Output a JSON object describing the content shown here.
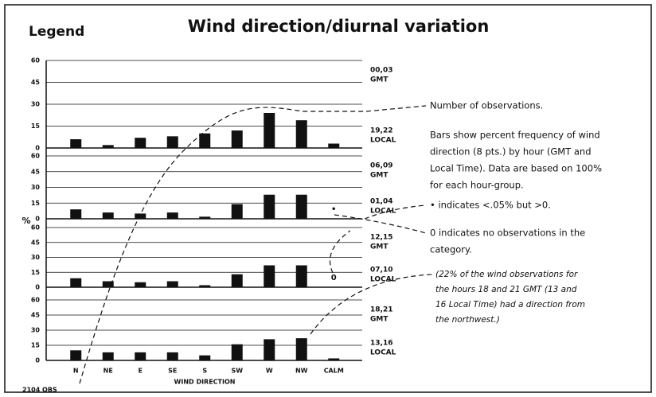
{
  "title": "Wind direction/diurnal variation",
  "legend_heading": "Legend",
  "y_label": "%",
  "x_label": "WIND DIRECTION",
  "obs_label": "2104 OBS",
  "annotations": [
    [
      "Number of observations."
    ],
    [
      "Bars show percent frequency of wind",
      "direction (8 pts.) by hour (GMT and",
      "Local Time). Data are based on 100%",
      "for each hour-group."
    ],
    [
      "• indicates <.05% but >0."
    ],
    [
      "0 indicates no observations in the",
      "category."
    ],
    [
      "(22% of the wind observations for",
      "the hours 18 and 21 GMT (13 and",
      "16 Local Time) had a direction from",
      "the northwest.)"
    ]
  ],
  "chart_data": [
    {
      "type": "bar",
      "color": "#111111",
      "gmt_hours": "00,03",
      "gmt": "GMT",
      "local_hours": "19,22",
      "local": "LOCAL",
      "values": [
        6,
        2,
        7,
        8,
        10,
        12,
        24,
        19,
        3
      ],
      "ylim": [
        0,
        60
      ],
      "yticks": [
        0,
        15,
        30,
        45,
        60
      ],
      "grid": true
    },
    {
      "type": "bar",
      "color": "#111111",
      "gmt_hours": "06,09",
      "gmt": "GMT",
      "local_hours": "01,04",
      "local": "LOCAL",
      "values": [
        9,
        6,
        5,
        6,
        2,
        14,
        23,
        23,
        0
      ],
      "value_labels": [
        null,
        null,
        null,
        null,
        null,
        null,
        null,
        null,
        "•"
      ],
      "ylim": [
        0,
        60
      ],
      "yticks": [
        0,
        15,
        30,
        45,
        60
      ],
      "grid": true
    },
    {
      "type": "bar",
      "color": "#111111",
      "gmt_hours": "12,15",
      "gmt": "GMT",
      "local_hours": "07,10",
      "local": "LOCAL",
      "values": [
        9,
        6,
        5,
        6,
        2,
        13,
        22,
        22,
        0
      ],
      "value_labels": [
        null,
        null,
        null,
        null,
        null,
        null,
        null,
        null,
        "0"
      ],
      "ylim": [
        0,
        60
      ],
      "yticks": [
        0,
        15,
        30,
        45,
        60
      ],
      "grid": true
    },
    {
      "type": "bar",
      "color": "#111111",
      "gmt_hours": "18,21",
      "gmt": "GMT",
      "local_hours": "13,16",
      "local": "LOCAL",
      "categories": [
        "N",
        "NE",
        "E",
        "SE",
        "S",
        "SW",
        "W",
        "NW",
        "CALM"
      ],
      "values": [
        10,
        8,
        8,
        8,
        5,
        16,
        21,
        22,
        2
      ],
      "ylim": [
        0,
        60
      ],
      "yticks": [
        0,
        15,
        30,
        45,
        60
      ],
      "grid": true
    }
  ]
}
